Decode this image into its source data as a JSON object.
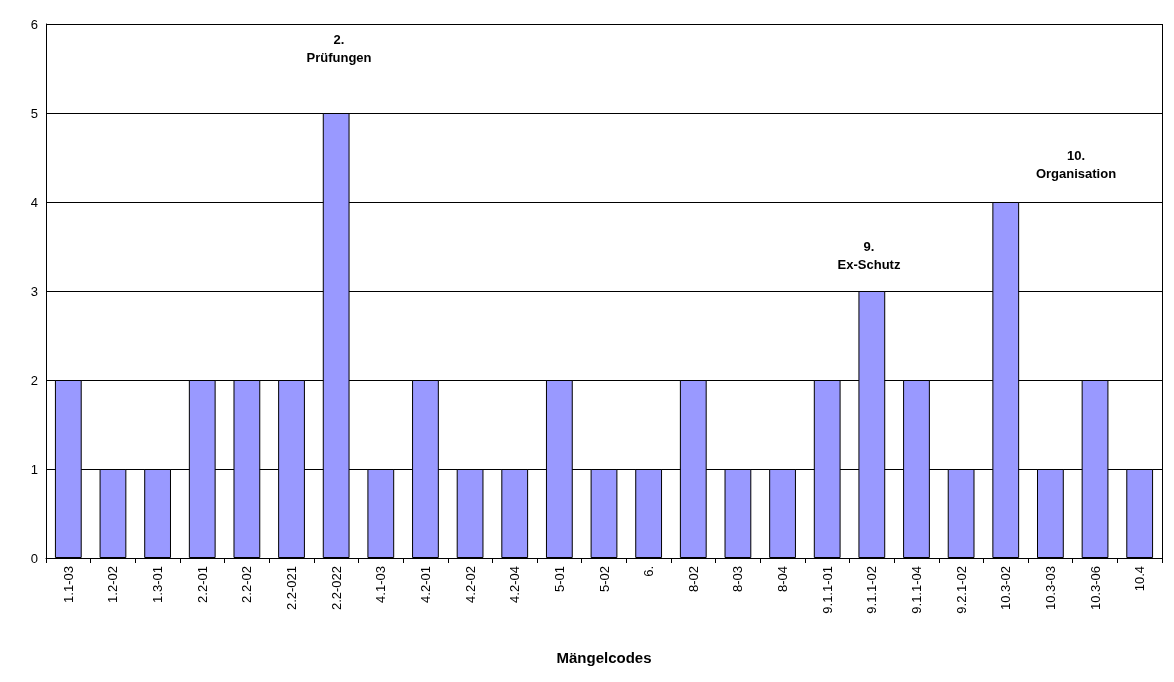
{
  "chart_data": {
    "type": "bar",
    "xlabel": "Mängelcodes",
    "categories": [
      "1.1-03",
      "1.2-02",
      "1.3-01",
      "2.2-01",
      "2.2-02",
      "2.2-021",
      "2.2-022",
      "4.1-03",
      "4.2-01",
      "4.2-02",
      "4.2-04",
      "5-01",
      "5-02",
      "6.",
      "8-02",
      "8-03",
      "8-04",
      "9.1.1-01",
      "9.1.1-02",
      "9.1.1-04",
      "9.2.1-02",
      "10.3-02",
      "10.3-03",
      "10.3-06",
      "10.4"
    ],
    "values": [
      2,
      1,
      1,
      2,
      2,
      2,
      5,
      1,
      2,
      1,
      1,
      2,
      1,
      1,
      2,
      1,
      1,
      2,
      3,
      2,
      1,
      4,
      1,
      2,
      1
    ],
    "color": "#9999ff",
    "ylim": [
      0,
      6
    ],
    "yticks": [
      0,
      1,
      2,
      3,
      4,
      5,
      6
    ],
    "grid": "y",
    "annotations": [
      "2.\nPrüfungen",
      "9.\nEx-Schutz",
      "10.\nOrganisation"
    ]
  }
}
